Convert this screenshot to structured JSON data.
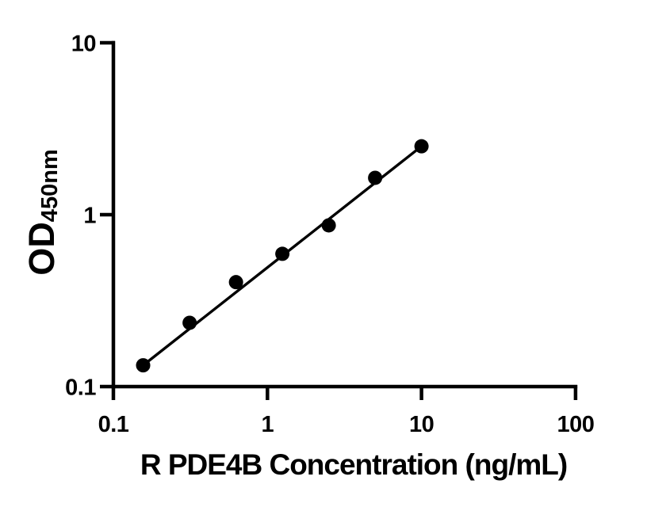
{
  "chart_data": {
    "type": "scatter",
    "title": "",
    "xlabel": "R PDE4B Concentration (ng/mL)",
    "ylabel": "OD450nm",
    "ylabel_main": "OD",
    "ylabel_sub": "450nm",
    "x": [
      0.156,
      0.3125,
      0.625,
      1.25,
      2.5,
      5,
      10
    ],
    "y": [
      0.133,
      0.235,
      0.405,
      0.592,
      0.867,
      1.638,
      2.5
    ],
    "x_scale": "log10",
    "y_scale": "log10",
    "xlim": [
      0.1,
      100
    ],
    "ylim": [
      0.1,
      10
    ],
    "x_ticks": [
      0.1,
      1,
      10,
      100
    ],
    "x_tick_labels": [
      "0.1",
      "1",
      "10",
      "100"
    ],
    "y_ticks": [
      0.1,
      1,
      10
    ],
    "y_tick_labels": [
      "0.1",
      "1",
      "10"
    ],
    "grid": false,
    "legend": false,
    "marker": {
      "shape": "circle",
      "color": "#000000"
    },
    "trend_line": {
      "type": "straight-line-in-loglog",
      "from": [
        0.156,
        0.133
      ],
      "to": [
        10,
        2.5
      ],
      "color": "#000000"
    },
    "colors": {
      "foreground": "#000000",
      "background": "#ffffff"
    }
  }
}
